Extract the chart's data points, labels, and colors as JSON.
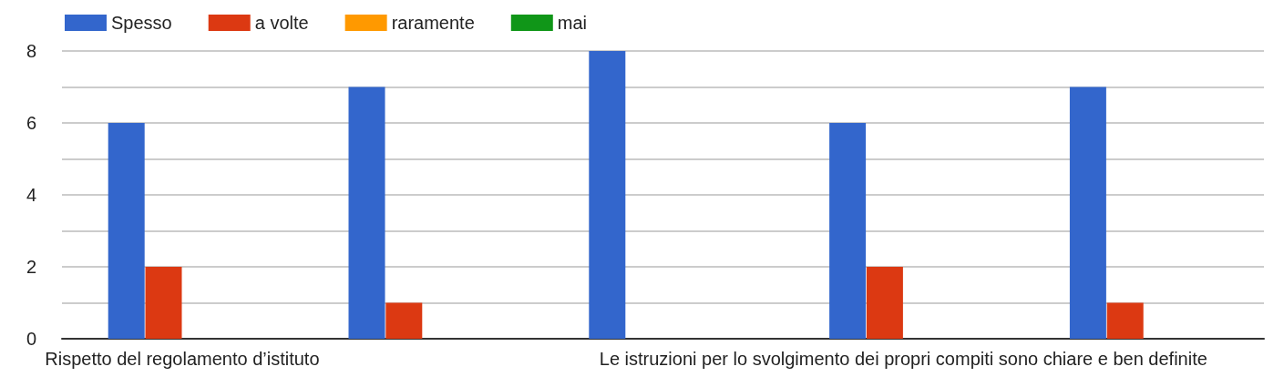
{
  "chart_data": {
    "type": "bar",
    "categories": [
      "Rispetto del regolamento d’istituto",
      null,
      null,
      "Le istruzioni per lo svolgimento dei propri compiti sono chiare e ben definite",
      null
    ],
    "series": [
      {
        "name": "Spesso",
        "color": "#3366cc",
        "values": [
          6,
          7,
          8,
          6,
          7
        ]
      },
      {
        "name": "a volte",
        "color": "#dc3912",
        "values": [
          2,
          1,
          0,
          2,
          1
        ]
      },
      {
        "name": "raramente",
        "color": "#ff9900",
        "values": [
          0,
          0,
          0,
          0,
          0
        ]
      },
      {
        "name": "mai",
        "color": "#109618",
        "values": [
          0,
          0,
          0,
          0,
          0
        ]
      }
    ],
    "ylim": [
      0,
      8
    ],
    "yticks": [
      0,
      {
        "value": 1,
        "label": null
      },
      2,
      {
        "value": 3,
        "label": null
      },
      4,
      {
        "value": 5,
        "label": null
      },
      6,
      {
        "value": 7,
        "label": null
      },
      8
    ],
    "grid": "y",
    "legend": "top left"
  }
}
